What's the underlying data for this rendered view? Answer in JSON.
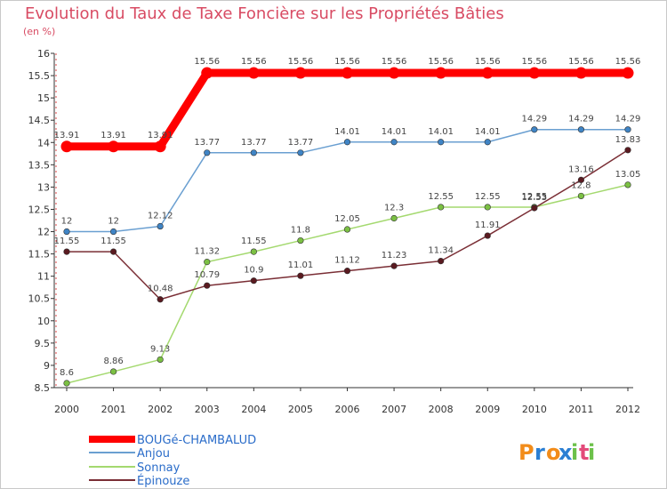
{
  "title": "Evolution du Taux de Taxe Foncière sur les Propriétés Bâties",
  "subtitle": "(en %)",
  "logo": {
    "text": "Proxiti",
    "colors": [
      "#f28c1a",
      "#2b7fd3",
      "#6cc14a",
      "#e34b7a"
    ]
  },
  "chart_data": {
    "type": "line",
    "title": "Evolution du Taux de Taxe Foncière sur les Propriétés Bâties",
    "ylabel": "(en %)",
    "xlabel": "",
    "x": [
      "2000",
      "2001",
      "2002",
      "2003",
      "2004",
      "2005",
      "2006",
      "2007",
      "2008",
      "2009",
      "2010",
      "2011",
      "2012"
    ],
    "ylim": [
      8.5,
      16
    ],
    "yticks": [
      "8.5",
      "9",
      "9.5",
      "10",
      "10.5",
      "11",
      "11.5",
      "12",
      "12.5",
      "13",
      "13.5",
      "14",
      "14.5",
      "15",
      "15.5",
      "16"
    ],
    "grid": false,
    "legend_position": "bottom-left",
    "series": [
      {
        "name": "BOUGé-CHAMBALUD",
        "color": "#ff0000",
        "marker": "#ff0000",
        "width": 9,
        "values": [
          13.91,
          13.91,
          13.91,
          15.56,
          15.56,
          15.56,
          15.56,
          15.56,
          15.56,
          15.56,
          15.56,
          15.56,
          15.56
        ],
        "labels": [
          "13.91",
          "13.91",
          "13.91",
          "15.56",
          "15.56",
          "15.56",
          "15.56",
          "15.56",
          "15.56",
          "15.56",
          "15.56",
          "15.56",
          "15.56"
        ]
      },
      {
        "name": "Anjou",
        "color": "#6a9fd1",
        "marker": "#3f84c5",
        "width": 1.5,
        "values": [
          12,
          12,
          12.12,
          13.77,
          13.77,
          13.77,
          14.01,
          14.01,
          14.01,
          14.01,
          14.29,
          14.29,
          14.29
        ],
        "labels": [
          "12",
          "12",
          "12.12",
          "13.77",
          "13.77",
          "13.77",
          "14.01",
          "14.01",
          "14.01",
          "14.01",
          "14.29",
          "14.29",
          "14.29"
        ]
      },
      {
        "name": "Sonnay",
        "color": "#a4d96f",
        "marker": "#7bc043",
        "width": 1.5,
        "values": [
          8.6,
          8.86,
          9.13,
          11.32,
          11.55,
          11.8,
          12.05,
          12.3,
          12.55,
          12.55,
          12.55,
          12.8,
          13.05
        ],
        "labels": [
          "8.6",
          "8.86",
          "9.13",
          "11.32",
          "11.55",
          "11.8",
          "12.05",
          "12.3",
          "12.55",
          "12.55",
          "12.55",
          "12.8",
          "13.05"
        ]
      },
      {
        "name": "Épinouze",
        "color": "#7a2e35",
        "marker": "#5a1a20",
        "width": 1.5,
        "values": [
          11.55,
          11.55,
          10.48,
          10.79,
          10.9,
          11.01,
          11.12,
          11.23,
          11.34,
          11.91,
          12.53,
          13.16,
          13.83
        ],
        "labels": [
          "11.55",
          "11.55",
          "10.48",
          "10.79",
          "10.9",
          "11.01",
          "11.12",
          "11.23",
          "11.34",
          "11.91",
          "12.53",
          "13.16",
          "13.83"
        ]
      }
    ]
  }
}
